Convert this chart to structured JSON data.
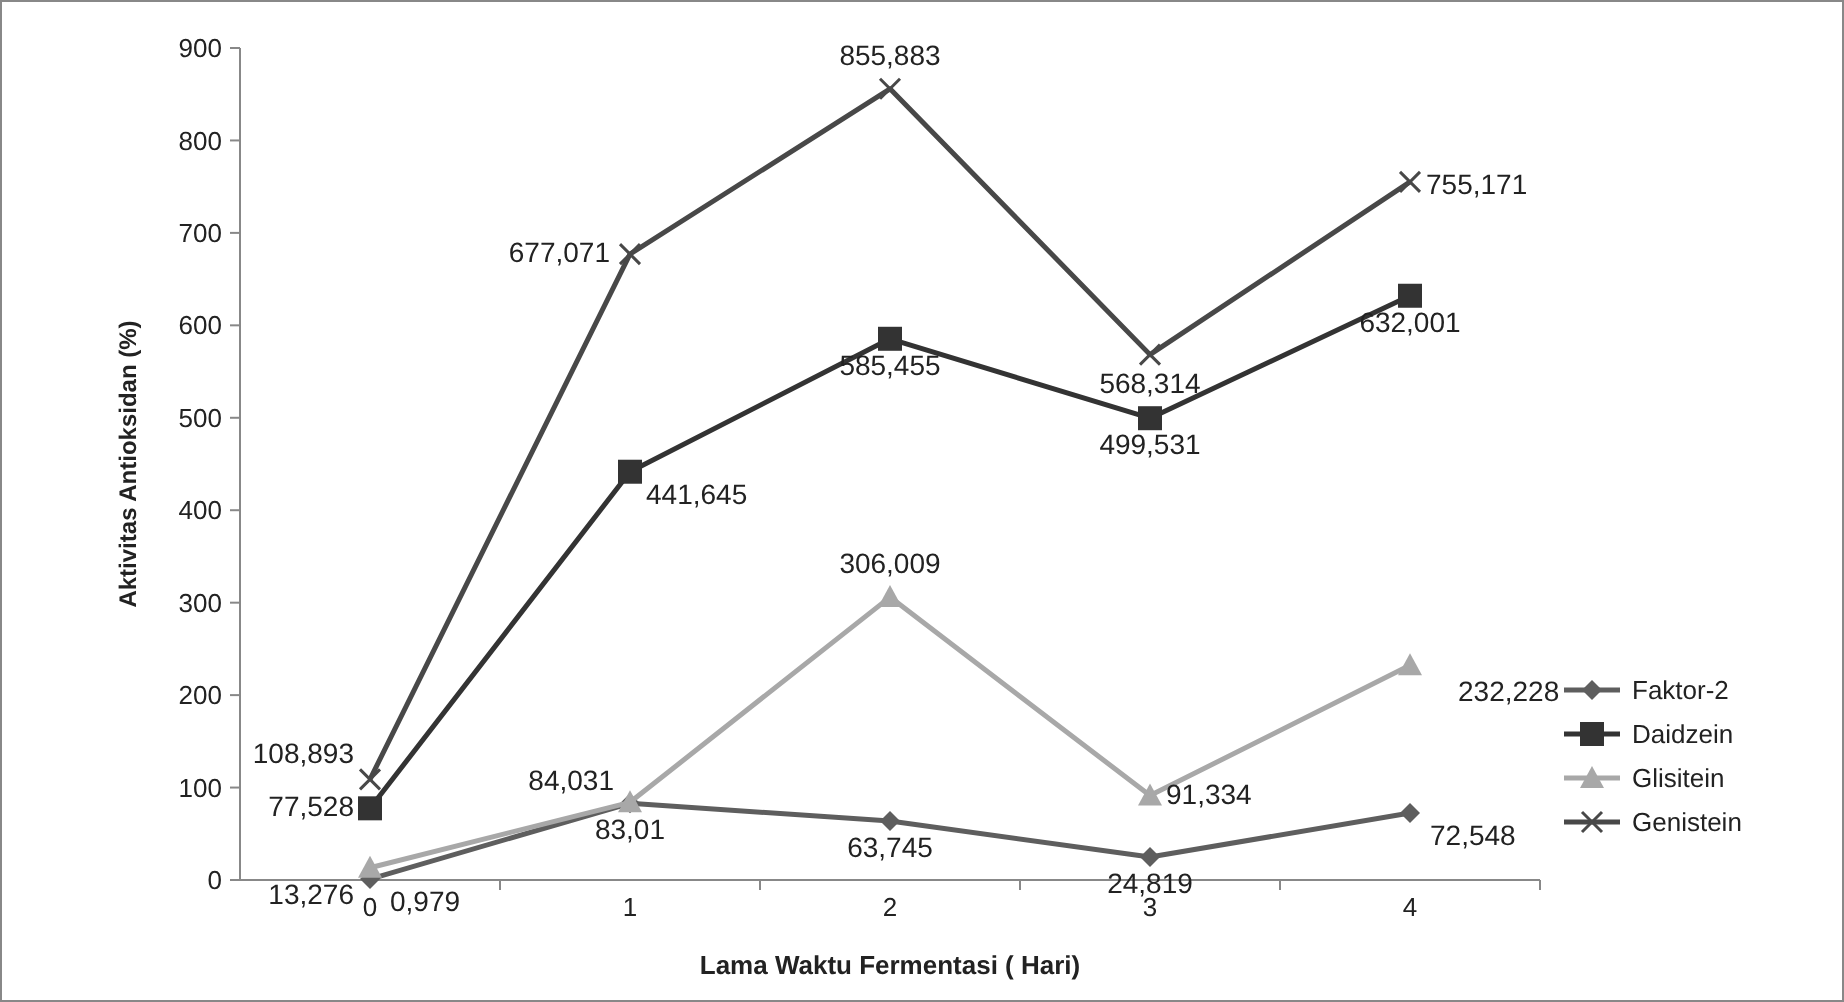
{
  "chart_data": {
    "type": "line",
    "xlabel": "Lama Waktu Fermentasi ( Hari)",
    "ylabel": "Aktivitas Antioksidan (%)",
    "categories": [
      "0",
      "1",
      "2",
      "3",
      "4"
    ],
    "ylim": [
      0,
      900
    ],
    "yticks": [
      0,
      100,
      200,
      300,
      400,
      500,
      600,
      700,
      800,
      900
    ],
    "grid": false,
    "legend": "right",
    "series": [
      {
        "name": "Faktor-2",
        "color": "#5e5e5e",
        "marker": "diamond",
        "values": [
          0.979,
          83.01,
          63.745,
          24.819,
          72.548
        ],
        "value_labels": [
          "0,979",
          "83,01",
          "63,745",
          "24,819",
          "72,548"
        ]
      },
      {
        "name": "Daidzein",
        "color": "#333333",
        "marker": "square",
        "values": [
          77.528,
          441.645,
          585.455,
          499.531,
          632.001
        ],
        "value_labels": [
          "77,528",
          "441,645",
          "585,455",
          "499,531",
          "632,001"
        ]
      },
      {
        "name": "Glisitein",
        "color": "#a8a8a8",
        "marker": "triangle",
        "values": [
          13.276,
          84.031,
          306.009,
          91.334,
          232.228
        ],
        "value_labels": [
          "13,276",
          "84,031",
          "306,009",
          "91,334",
          "232,228"
        ]
      },
      {
        "name": "Genistein",
        "color": "#484848",
        "marker": "cross",
        "values": [
          108.893,
          677.071,
          855.883,
          568.314,
          755.171
        ],
        "value_labels": [
          "108,893",
          "677,071",
          "855,883",
          "568,314",
          "755,171"
        ]
      }
    ]
  }
}
